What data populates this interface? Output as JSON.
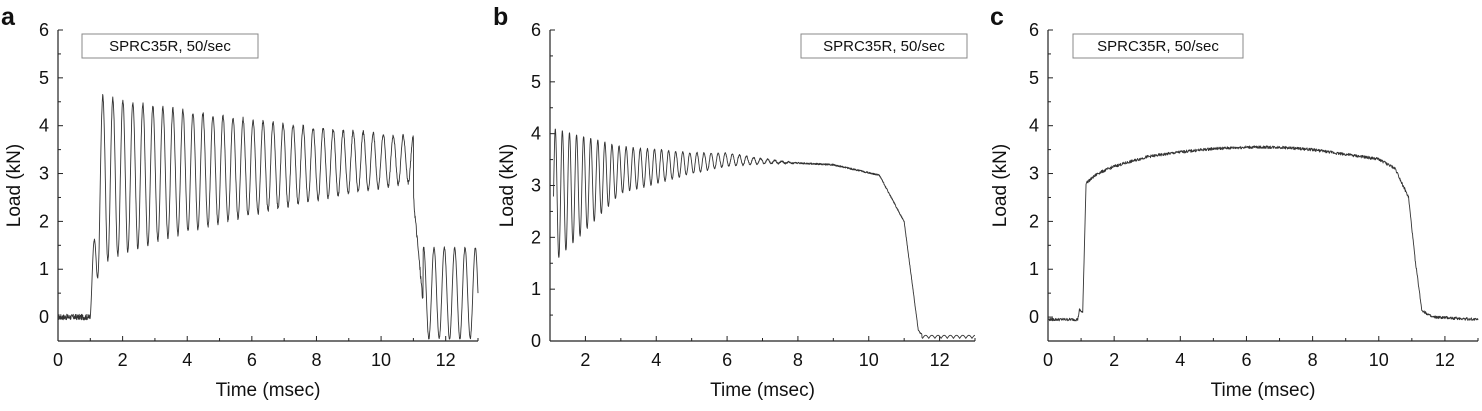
{
  "chart_data": [
    {
      "type": "line",
      "panel": "a",
      "legend": "SPRC35R, 50/sec",
      "legend_placement": "top-left",
      "xlabel": "Time (msec)",
      "ylabel": "Load (kN)",
      "xlim": [
        0,
        13
      ],
      "ylim": [
        -0.5,
        6
      ],
      "xticks": [
        "0",
        "2",
        "4",
        "6",
        "8",
        "10",
        "12"
      ],
      "yticks": [
        "0",
        "1",
        "2",
        "3",
        "4",
        "5",
        "6"
      ],
      "grid": false,
      "signal": {
        "baseline": 0.0,
        "start": 1.0,
        "osc_period": 0.31,
        "segments": [
          {
            "t_end": 11.0,
            "mean_start": 2.8,
            "mean_end": 3.3,
            "amp_start": 1.9,
            "amp_end": 0.55
          },
          {
            "t_end": 11.3,
            "drop_to": 0.3
          },
          {
            "t_end": 13.0,
            "mean": 0.5,
            "amp": 0.95
          }
        ],
        "peaks_approx": [
          [
            1.2,
            4.7
          ],
          [
            2.3,
            4.75
          ],
          [
            4.5,
            4.5
          ],
          [
            6.5,
            4.35
          ],
          [
            8.5,
            4.1
          ],
          [
            10.0,
            3.9
          ],
          [
            11.4,
            1.6
          ],
          [
            12.9,
            1.1
          ]
        ],
        "troughs_approx": [
          [
            1.5,
            0.9
          ],
          [
            3.0,
            1.8
          ],
          [
            5.0,
            2.4
          ],
          [
            7.0,
            2.7
          ],
          [
            9.0,
            2.8
          ],
          [
            11.2,
            -0.5
          ]
        ]
      }
    },
    {
      "type": "line",
      "panel": "b",
      "legend": "SPRC35R, 50/sec",
      "legend_placement": "top-right",
      "xlabel": "Time (msec)",
      "ylabel": "Load (kN)",
      "xlim": [
        1,
        13
      ],
      "ylim": [
        0,
        6
      ],
      "xticks": [
        "2",
        "4",
        "6",
        "8",
        "10",
        "12"
      ],
      "yticks": [
        "0",
        "1",
        "2",
        "3",
        "4",
        "5",
        "6"
      ],
      "grid": false,
      "signal": {
        "osc_period": 0.2,
        "mean_rise": [
          [
            1.1,
            2.8
          ],
          [
            3.0,
            3.3
          ],
          [
            6.0,
            3.5
          ],
          [
            9.0,
            3.4
          ],
          [
            10.3,
            3.2
          ],
          [
            11.0,
            2.3
          ],
          [
            11.4,
            0.2
          ],
          [
            11.6,
            0.05
          ],
          [
            13.0,
            0.05
          ]
        ],
        "amp_decay": [
          [
            1.1,
            1.3
          ],
          [
            3.0,
            0.45
          ],
          [
            5.0,
            0.2
          ],
          [
            7.0,
            0.05
          ],
          [
            8.0,
            0.0
          ]
        ],
        "peaks_approx": [
          [
            1.3,
            4.1
          ],
          [
            2.0,
            3.85
          ],
          [
            4.0,
            3.65
          ],
          [
            6.0,
            3.55
          ]
        ],
        "troughs_approx": [
          [
            1.3,
            1.5
          ],
          [
            2.0,
            2.1
          ],
          [
            4.0,
            2.9
          ],
          [
            6.0,
            3.4
          ]
        ]
      }
    },
    {
      "type": "line",
      "panel": "c",
      "legend": "SPRC35R, 50/sec",
      "legend_placement": "top-left",
      "xlabel": "Time (msec)",
      "ylabel": "Load (kN)",
      "xlim": [
        0,
        13
      ],
      "ylim": [
        -0.5,
        6
      ],
      "xticks": [
        "0",
        "2",
        "4",
        "6",
        "8",
        "10",
        "12"
      ],
      "yticks": [
        "0",
        "1",
        "2",
        "3",
        "4",
        "5",
        "6"
      ],
      "grid": false,
      "signal": {
        "points": [
          [
            0.0,
            -0.05
          ],
          [
            0.9,
            -0.05
          ],
          [
            0.95,
            0.15
          ],
          [
            1.05,
            0.1
          ],
          [
            1.15,
            2.8
          ],
          [
            1.5,
            3.0
          ],
          [
            2.0,
            3.15
          ],
          [
            3.0,
            3.35
          ],
          [
            4.0,
            3.45
          ],
          [
            5.0,
            3.52
          ],
          [
            6.0,
            3.55
          ],
          [
            7.0,
            3.55
          ],
          [
            8.0,
            3.5
          ],
          [
            9.0,
            3.4
          ],
          [
            10.0,
            3.3
          ],
          [
            10.5,
            3.1
          ],
          [
            10.9,
            2.5
          ],
          [
            11.1,
            1.2
          ],
          [
            11.3,
            0.15
          ],
          [
            11.6,
            0.0
          ],
          [
            13.0,
            -0.05
          ]
        ],
        "noise": 0.06
      }
    }
  ]
}
